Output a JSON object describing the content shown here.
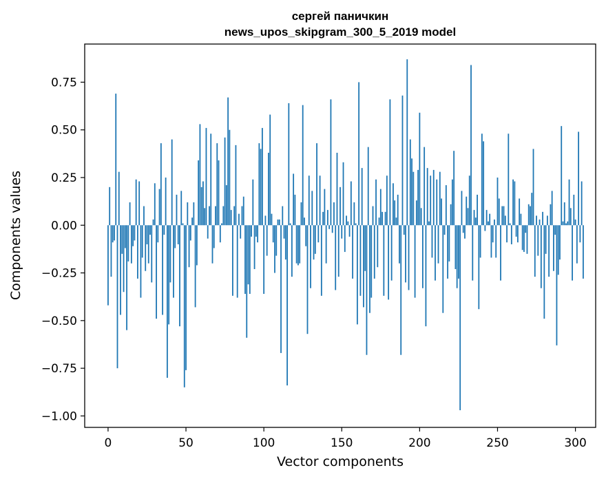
{
  "chart_data": {
    "type": "bar",
    "title": "сергей паничкин",
    "subtitle": "news_upos_skipgram_300_5_2019 model",
    "xlabel": "Vector components",
    "ylabel": "Components values",
    "xlim": [
      -15,
      313
    ],
    "ylim": [
      -1.06,
      0.95
    ],
    "xticks": [
      0,
      50,
      100,
      150,
      200,
      250,
      300
    ],
    "xtick_labels": [
      "0",
      "50",
      "100",
      "150",
      "200",
      "250",
      "300"
    ],
    "yticks": [
      -1.0,
      -0.75,
      -0.5,
      -0.25,
      0.0,
      0.25,
      0.5,
      0.75
    ],
    "ytick_labels": [
      "−1.00",
      "−0.75",
      "−0.50",
      "−0.25",
      "0.00",
      "0.25",
      "0.50",
      "0.75"
    ],
    "bar_color": "#1f77b4",
    "grid": false,
    "values": [
      -0.42,
      0.2,
      -0.27,
      -0.09,
      -0.08,
      0.69,
      -0.75,
      0.28,
      -0.47,
      -0.15,
      -0.35,
      -0.12,
      -0.55,
      -0.19,
      0.12,
      -0.2,
      -0.11,
      -0.08,
      0.24,
      -0.28,
      0.23,
      -0.38,
      -0.17,
      0.1,
      -0.24,
      -0.1,
      -0.2,
      -0.05,
      -0.3,
      0.03,
      0.22,
      -0.49,
      -0.09,
      0.19,
      0.43,
      -0.47,
      -0.05,
      0.25,
      -0.8,
      -0.52,
      -0.3,
      0.45,
      -0.38,
      -0.12,
      0.16,
      -0.1,
      -0.53,
      0.18,
      0.01,
      -0.85,
      -0.76,
      0.12,
      -0.22,
      -0.08,
      0.04,
      0.12,
      -0.43,
      -0.21,
      0.34,
      0.53,
      0.2,
      0.23,
      0.09,
      0.51,
      -0.07,
      0.1,
      0.48,
      -0.2,
      -0.12,
      0.1,
      0.43,
      0.34,
      -0.09,
      0.01,
      0.1,
      0.46,
      0.21,
      0.67,
      0.5,
      0.08,
      -0.37,
      0.1,
      0.42,
      -0.38,
      0.06,
      -0.07,
      0.1,
      0.15,
      -0.36,
      -0.59,
      -0.31,
      -0.36,
      -0.06,
      0.24,
      -0.23,
      -0.06,
      -0.09,
      0.43,
      0.4,
      0.51,
      -0.36,
      0.05,
      -0.16,
      0.38,
      0.58,
      0.06,
      -0.09,
      -0.25,
      -0.16,
      0.03,
      0.03,
      -0.67,
      0.1,
      -0.07,
      -0.18,
      -0.84,
      0.64,
      0.01,
      -0.27,
      0.27,
      0.16,
      -0.2,
      -0.21,
      -0.2,
      0.12,
      0.63,
      0.04,
      -0.11,
      -0.57,
      0.26,
      -0.33,
      0.18,
      -0.18,
      -0.15,
      0.43,
      -0.09,
      0.26,
      -0.37,
      0.07,
      0.19,
      -0.2,
      0.08,
      -0.02,
      0.66,
      -0.04,
      0.12,
      -0.34,
      0.38,
      -0.27,
      0.2,
      -0.07,
      0.33,
      -0.14,
      0.05,
      0.02,
      -0.06,
      0.23,
      -0.28,
      0.12,
      0.01,
      -0.52,
      0.75,
      -0.37,
      0.3,
      -0.43,
      -0.24,
      -0.68,
      0.41,
      -0.46,
      -0.38,
      0.1,
      -0.28,
      0.24,
      -0.22,
      0.04,
      0.19,
      0.07,
      -0.37,
      0.07,
      0.26,
      -0.39,
      0.66,
      -0.29,
      0.22,
      0.13,
      0.04,
      0.16,
      -0.2,
      -0.68,
      0.68,
      -0.05,
      -0.3,
      0.87,
      -0.34,
      0.45,
      0.35,
      0.28,
      -0.38,
      0.13,
      0.29,
      0.59,
      0.09,
      -0.33,
      0.41,
      -0.53,
      0.3,
      0.02,
      0.26,
      -0.17,
      0.29,
      -0.29,
      0.24,
      -0.2,
      0.28,
      0.14,
      -0.46,
      -0.05,
      0.21,
      -0.28,
      -0.19,
      0.11,
      0.24,
      0.39,
      -0.23,
      -0.33,
      -0.28,
      -0.97,
      0.18,
      -0.04,
      -0.07,
      0.15,
      0.09,
      0.26,
      0.84,
      -0.29,
      0.08,
      0.04,
      0.16,
      -0.44,
      -0.17,
      0.48,
      0.44,
      -0.03,
      0.08,
      0.02,
      0.06,
      -0.17,
      -0.09,
      0.03,
      -0.17,
      0.25,
      0.14,
      -0.29,
      0.1,
      0.1,
      0.05,
      -0.09,
      0.48,
      0.01,
      -0.1,
      0.24,
      0.23,
      -0.06,
      -0.09,
      0.14,
      0.06,
      -0.13,
      -0.14,
      -0.04,
      -0.15,
      0.11,
      0.1,
      0.17,
      0.4,
      -0.27,
      0.05,
      -0.16,
      0.03,
      -0.33,
      0.07,
      -0.49,
      -0.15,
      0.05,
      -0.27,
      0.11,
      0.18,
      -0.24,
      -0.05,
      -0.63,
      -0.26,
      -0.18,
      0.52,
      0.02,
      0.12,
      0.01,
      0.02,
      0.24,
      0.09,
      -0.29,
      0.16,
      0.03,
      -0.2,
      0.49,
      -0.09,
      0.23,
      -0.28
    ]
  }
}
